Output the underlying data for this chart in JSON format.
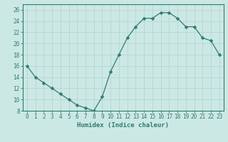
{
  "x": [
    0,
    1,
    2,
    3,
    4,
    5,
    6,
    7,
    8,
    9,
    10,
    11,
    12,
    13,
    14,
    15,
    16,
    17,
    18,
    19,
    20,
    21,
    22,
    23
  ],
  "y": [
    16,
    14,
    13,
    12,
    11,
    10,
    9,
    8.5,
    8,
    10.5,
    15,
    18,
    21,
    23,
    24.5,
    24.5,
    25.5,
    25.5,
    24.5,
    23,
    23,
    21,
    20.5,
    18
  ],
  "line_color": "#2e7d6e",
  "marker": "D",
  "marker_size": 2.5,
  "bg_color": "#cce8e4",
  "grid_color": "#b8d8d4",
  "xlabel": "Humidex (Indice chaleur)",
  "ylim": [
    8,
    27
  ],
  "xlim": [
    -0.5,
    23.5
  ],
  "yticks": [
    8,
    10,
    12,
    14,
    16,
    18,
    20,
    22,
    24,
    26
  ],
  "xticks": [
    0,
    1,
    2,
    3,
    4,
    5,
    6,
    7,
    8,
    9,
    10,
    11,
    12,
    13,
    14,
    15,
    16,
    17,
    18,
    19,
    20,
    21,
    22,
    23
  ],
  "axis_color": "#2e7d6e",
  "tick_color": "#2e7d6e",
  "label_fontsize": 6.5,
  "tick_fontsize": 5.5
}
